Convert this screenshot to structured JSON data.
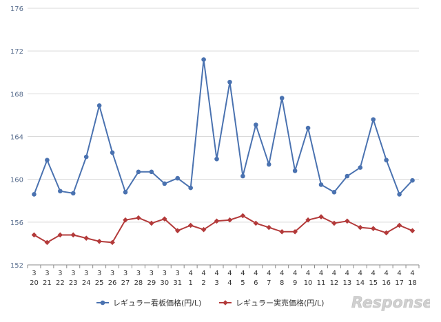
{
  "chart_data": {
    "type": "line",
    "categories": [
      [
        "3",
        "20"
      ],
      [
        "3",
        "21"
      ],
      [
        "3",
        "22"
      ],
      [
        "3",
        "23"
      ],
      [
        "3",
        "24"
      ],
      [
        "3",
        "25"
      ],
      [
        "3",
        "26"
      ],
      [
        "3",
        "27"
      ],
      [
        "3",
        "28"
      ],
      [
        "3",
        "29"
      ],
      [
        "3",
        "30"
      ],
      [
        "3",
        "31"
      ],
      [
        "4",
        "1"
      ],
      [
        "4",
        "2"
      ],
      [
        "4",
        "3"
      ],
      [
        "4",
        "4"
      ],
      [
        "4",
        "5"
      ],
      [
        "4",
        "6"
      ],
      [
        "4",
        "7"
      ],
      [
        "4",
        "8"
      ],
      [
        "4",
        "9"
      ],
      [
        "4",
        "10"
      ],
      [
        "4",
        "11"
      ],
      [
        "4",
        "12"
      ],
      [
        "4",
        "13"
      ],
      [
        "4",
        "14"
      ],
      [
        "4",
        "15"
      ],
      [
        "4",
        "16"
      ],
      [
        "4",
        "17"
      ],
      [
        "4",
        "18"
      ]
    ],
    "ylim": [
      152,
      176
    ],
    "yticks": [
      "152",
      "156",
      "160",
      "164",
      "168",
      "172",
      "176"
    ],
    "grid": true,
    "legend_position": "bottom",
    "series": [
      {
        "name": "レギュラー看板価格(円/L)",
        "color": "#4a72b0",
        "marker": "circle",
        "values": [
          158.6,
          161.8,
          158.9,
          158.7,
          162.1,
          166.9,
          162.5,
          158.8,
          160.7,
          160.7,
          159.6,
          160.1,
          159.2,
          171.2,
          161.9,
          169.1,
          160.3,
          165.1,
          161.4,
          167.6,
          160.8,
          164.8,
          159.5,
          158.8,
          160.3,
          161.1,
          165.6,
          161.8,
          158.6,
          159.9
        ]
      },
      {
        "name": "レギュラー実売価格(円/L)",
        "color": "#b33a3a",
        "marker": "diamond",
        "values": [
          154.8,
          154.1,
          154.8,
          154.8,
          154.5,
          154.2,
          154.1,
          156.2,
          156.4,
          155.9,
          156.3,
          155.2,
          155.7,
          155.3,
          156.1,
          156.2,
          156.6,
          155.9,
          155.5,
          155.1,
          155.1,
          156.2,
          156.5,
          155.9,
          156.1,
          155.5,
          155.4,
          155.0,
          155.7,
          155.2
        ]
      }
    ]
  },
  "watermark": {
    "text": "Response."
  }
}
